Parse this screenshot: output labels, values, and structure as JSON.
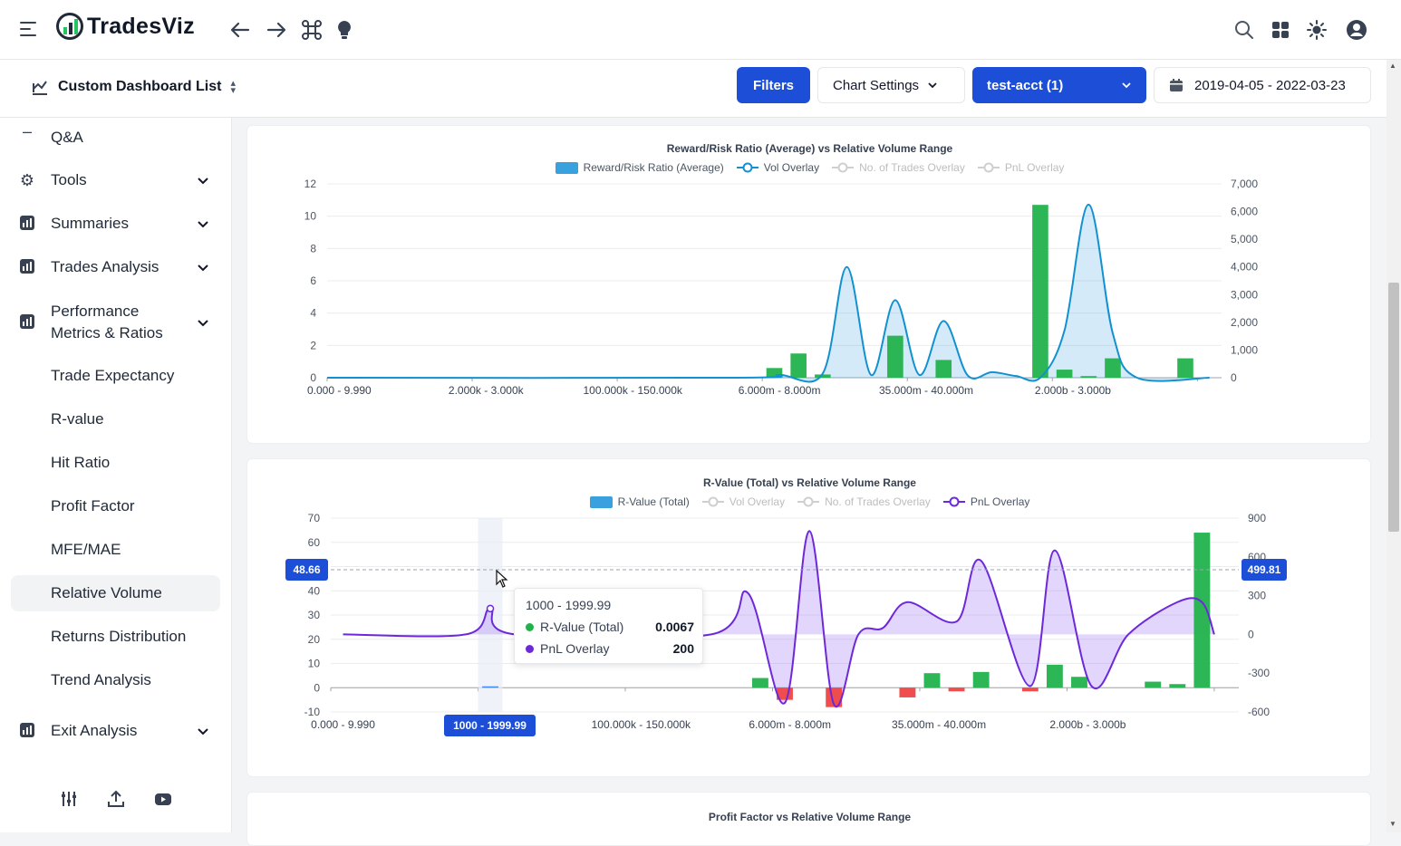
{
  "app": {
    "brand": "TradesViz"
  },
  "topbar": {
    "icons": [
      "menu-icon",
      "back-arrow-icon",
      "forward-arrow-icon",
      "command-icon",
      "lightbulb-icon",
      "search-icon",
      "apps-grid-icon",
      "theme-sun-icon",
      "user-account-icon"
    ]
  },
  "subbar": {
    "dashboard_label": "Custom Dashboard List",
    "filters_label": "Filters",
    "chart_settings_label": "Chart Settings",
    "account_label": "test-acct (1)",
    "date_range": "2019-04-05 - 2022-03-23"
  },
  "sidebar": {
    "qa": "Q&A",
    "tools": "Tools",
    "summaries": "Summaries",
    "trades_analysis": "Trades Analysis",
    "performance_line1": "Performance",
    "performance_line2": "Metrics & Ratios",
    "sub_items": [
      "Trade Expectancy",
      "R-value",
      "Hit Ratio",
      "Profit Factor",
      "MFE/MAE",
      "Relative Volume",
      "Returns Distribution",
      "Trend Analysis"
    ],
    "active_item": "Relative Volume",
    "exit_analysis": "Exit Analysis"
  },
  "colors": {
    "accent": "#1d4ed8",
    "green": "#22b24c",
    "red": "#ef4444",
    "line_blue": "#1291d1",
    "line_purple": "#6d28d9"
  },
  "tooltip": {
    "title": "1000 - 1999.99",
    "row1_label": "R-Value (Total)",
    "row1_value": "0.0067",
    "row2_label": "PnL Overlay",
    "row2_value": "200"
  },
  "crosshair": {
    "y_left": "48.66",
    "y_right": "499.81",
    "x": "1000 - 1999.99"
  },
  "chart_data": [
    {
      "type": "bar",
      "title": "Reward/Risk Ratio (Average)  vs Relative Volume Range",
      "legend": [
        {
          "label": "Reward/Risk Ratio (Average)",
          "active": true
        },
        {
          "label": "Vol Overlay",
          "active": true
        },
        {
          "label": "No. of Trades Overlay",
          "active": false
        },
        {
          "label": "PnL Overlay",
          "active": false
        }
      ],
      "x_tick_labels": [
        "0.000 - 9.990",
        "2.000k - 3.000k",
        "100.000k - 150.000k",
        "6.000m - 8.000m",
        "35.000m - 40.000m",
        "2.000b - 3.000b"
      ],
      "y_left_ticks": [
        "0",
        "2",
        "4",
        "6",
        "8",
        "10",
        "12"
      ],
      "y_right_ticks": [
        "0",
        "1,000",
        "2,000",
        "3,000",
        "4,000",
        "5,000",
        "6,000",
        "7,000"
      ],
      "ylim": [
        0,
        12
      ],
      "y2lim": [
        0,
        7000
      ],
      "bars": [
        {
          "i": 18.5,
          "v": 0.6
        },
        {
          "i": 19.5,
          "v": 1.5
        },
        {
          "i": 20.5,
          "v": 0.2
        },
        {
          "i": 23.5,
          "v": 2.6
        },
        {
          "i": 25.5,
          "v": 1.1
        },
        {
          "i": 29.5,
          "v": 10.7
        },
        {
          "i": 30.5,
          "v": 0.5
        },
        {
          "i": 31.5,
          "v": 0.1
        },
        {
          "i": 32.5,
          "v": 1.2
        },
        {
          "i": 35.5,
          "v": 1.2
        }
      ],
      "overlay_points": [
        {
          "i": 0,
          "v": 0
        },
        {
          "i": 17,
          "v": 0
        },
        {
          "i": 18.7,
          "v": 100
        },
        {
          "i": 20.5,
          "v": 150
        },
        {
          "i": 21.5,
          "v": 4000
        },
        {
          "i": 22.5,
          "v": 100
        },
        {
          "i": 23.5,
          "v": 2800
        },
        {
          "i": 24.5,
          "v": 100
        },
        {
          "i": 25.5,
          "v": 2050
        },
        {
          "i": 26.5,
          "v": 80
        },
        {
          "i": 27.5,
          "v": 200
        },
        {
          "i": 28.5,
          "v": 60
        },
        {
          "i": 29.5,
          "v": 0
        },
        {
          "i": 30.5,
          "v": 1700
        },
        {
          "i": 31.5,
          "v": 6250
        },
        {
          "i": 32.5,
          "v": 1600
        },
        {
          "i": 33.5,
          "v": 0
        },
        {
          "i": 36.5,
          "v": 0
        }
      ]
    },
    {
      "type": "bar",
      "title": "R-Value (Total) vs Relative Volume Range",
      "legend": [
        {
          "label": "R-Value (Total)",
          "active": true
        },
        {
          "label": "Vol Overlay",
          "active": false
        },
        {
          "label": "No. of Trades Overlay",
          "active": false
        },
        {
          "label": "PnL Overlay",
          "active": true
        }
      ],
      "x_tick_labels": [
        "0.000 - 9.990",
        "2.000k - 3.000k",
        "100.000k - 150.000k",
        "6.000m - 8.000m",
        "35.000m - 40.000m",
        "2.000b - 3.000b"
      ],
      "y_left_ticks": [
        "-10",
        "0",
        "10",
        "20",
        "30",
        "40",
        "50",
        "60",
        "70"
      ],
      "y_right_ticks": [
        "-600",
        "-300",
        "0",
        "300",
        "600",
        "900"
      ],
      "ylim": [
        -10,
        70
      ],
      "y2lim": [
        -600,
        900
      ],
      "bars": [
        {
          "i": 6.5,
          "v": 0.0067
        },
        {
          "i": 17.5,
          "v": 4
        },
        {
          "i": 18.5,
          "v": -5
        },
        {
          "i": 20.5,
          "v": -8
        },
        {
          "i": 23.5,
          "v": -4
        },
        {
          "i": 24.5,
          "v": 6
        },
        {
          "i": 25.5,
          "v": -1.5
        },
        {
          "i": 26.5,
          "v": 6.5
        },
        {
          "i": 28.5,
          "v": -1.5
        },
        {
          "i": 29.5,
          "v": 9.5
        },
        {
          "i": 30.5,
          "v": 4.5
        },
        {
          "i": 33.5,
          "v": 2.5
        },
        {
          "i": 34.5,
          "v": 1.5
        },
        {
          "i": 35.5,
          "v": 64
        }
      ],
      "overlay_points": [
        {
          "i": 0.5,
          "v": 0
        },
        {
          "i": 5.5,
          "v": 0
        },
        {
          "i": 6.5,
          "v": 200
        },
        {
          "i": 7.5,
          "v": 0
        },
        {
          "i": 15.5,
          "v": 0
        },
        {
          "i": 17,
          "v": 320
        },
        {
          "i": 18.5,
          "v": -530
        },
        {
          "i": 19.5,
          "v": 800
        },
        {
          "i": 20.5,
          "v": -540
        },
        {
          "i": 21.5,
          "v": 0
        },
        {
          "i": 22.5,
          "v": 50
        },
        {
          "i": 23.5,
          "v": 250
        },
        {
          "i": 25.5,
          "v": 100
        },
        {
          "i": 26.5,
          "v": 570
        },
        {
          "i": 28.5,
          "v": -400
        },
        {
          "i": 29.5,
          "v": 650
        },
        {
          "i": 31,
          "v": -400
        },
        {
          "i": 32.5,
          "v": 0
        },
        {
          "i": 34.5,
          "v": 250
        },
        {
          "i": 35.5,
          "v": 250
        },
        {
          "i": 36,
          "v": 0
        }
      ]
    },
    {
      "type": "bar",
      "title": "Profit Factor vs Relative Volume Range"
    }
  ]
}
